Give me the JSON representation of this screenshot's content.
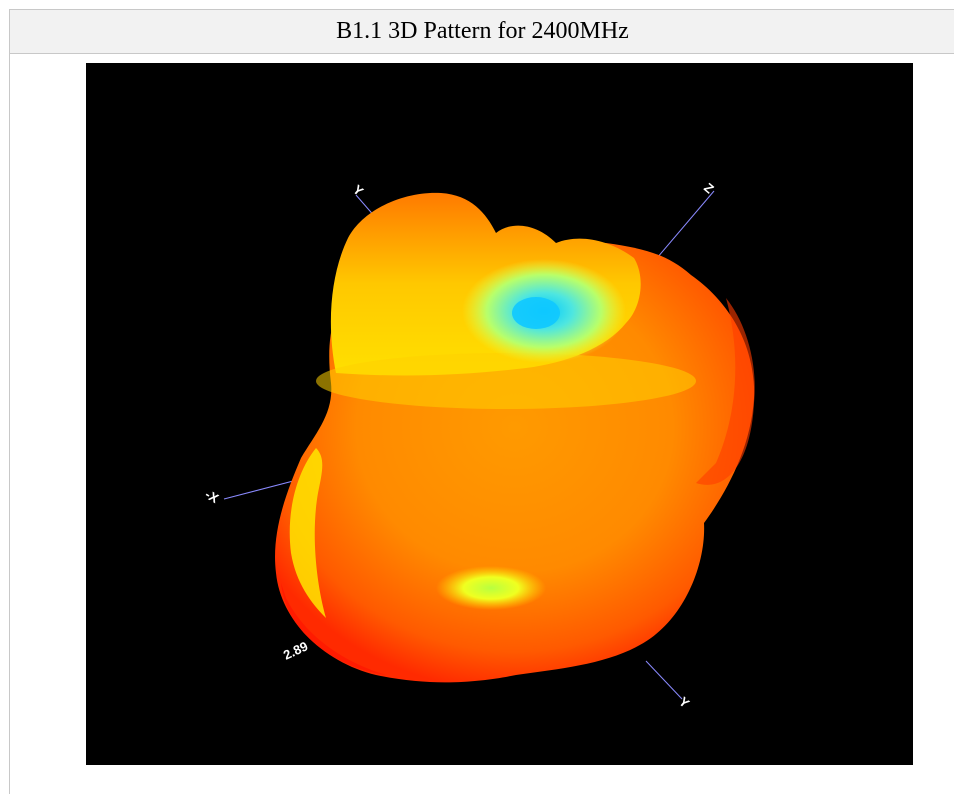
{
  "header": {
    "title": "B1.1 3D Pattern for 2400MHz"
  },
  "figure": {
    "axis_labels": {
      "x_neg": "-X",
      "y_pos": "Y",
      "z_pos": "Z",
      "y_bottom": "Y"
    },
    "scale_value": "2.89",
    "colors": {
      "background": "#000000",
      "low": "#2ad4ff",
      "mid": "#ffff00",
      "high": "#ff8c00",
      "peak": "#ff2000",
      "axis_line": "#8a8aff"
    }
  }
}
